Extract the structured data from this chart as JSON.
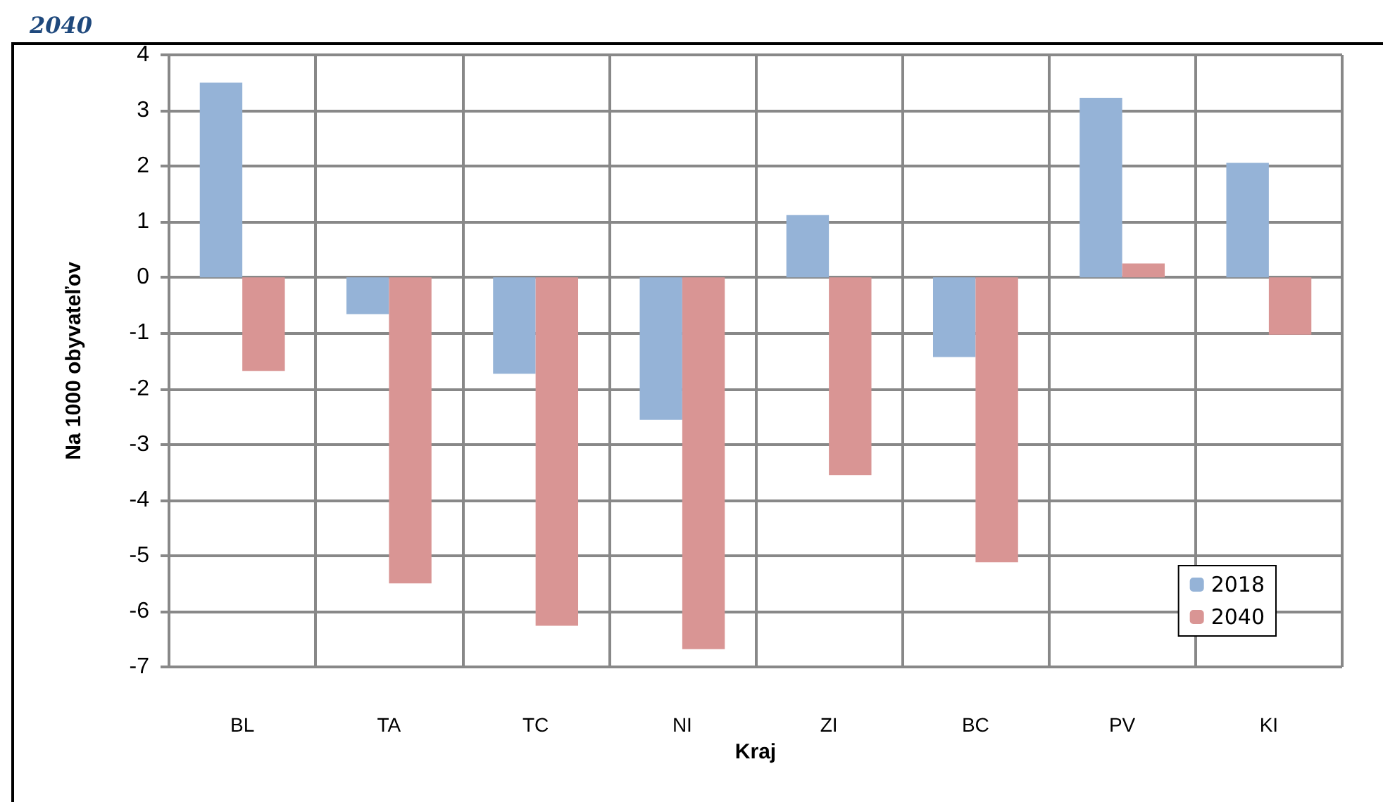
{
  "chart_data": {
    "type": "bar",
    "title": "2040",
    "xlabel": "Kraj",
    "ylabel": "Na 1000 obyvateľov",
    "categories": [
      "BL",
      "TA",
      "TC",
      "NI",
      "ZI",
      "BC",
      "PV",
      "KI"
    ],
    "series": [
      {
        "name": "2018",
        "color": "#95b3d7",
        "values": [
          3.5,
          -0.66,
          -1.73,
          -2.56,
          1.12,
          -1.43,
          3.23,
          2.06
        ]
      },
      {
        "name": "2040",
        "color": "#d99594",
        "values": [
          -1.68,
          -5.5,
          -6.26,
          -6.68,
          -3.55,
          -5.12,
          0.25,
          -1.03
        ]
      }
    ],
    "ylim": [
      -7,
      4
    ],
    "yticks": [
      -7,
      -6,
      -5,
      -4,
      -3,
      -2,
      -1,
      0,
      1,
      2,
      3,
      4
    ],
    "grid": true,
    "legend": "bottom right"
  }
}
